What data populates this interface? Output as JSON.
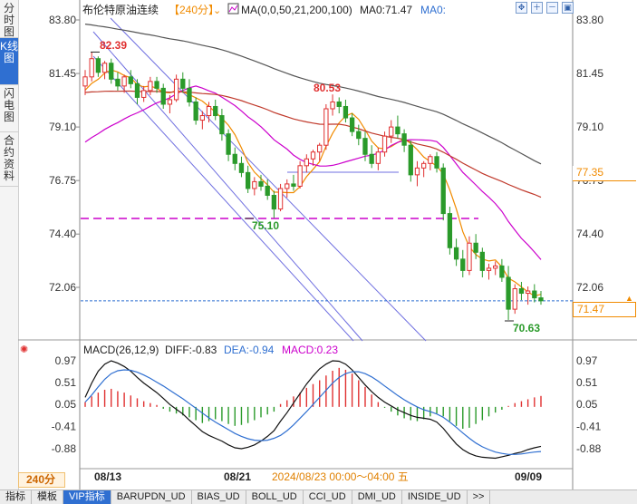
{
  "sidebar": {
    "tabs": [
      {
        "label": "分时图",
        "active": false
      },
      {
        "label": "K线图",
        "active": true
      },
      {
        "label": "闪电图",
        "active": false
      },
      {
        "label": "合约资料",
        "active": false
      }
    ]
  },
  "header": {
    "instrument": "布伦特原油连续",
    "period_tag": "【240分】",
    "ma_formula": "MA(0,0,50,21,200,100)",
    "ma_value_label": "MA0:71.47",
    "ma0_label": "MA0:"
  },
  "price_axis": {
    "ticks": [
      "83.80",
      "81.45",
      "79.10",
      "76.75",
      "74.40",
      "72.06"
    ],
    "right_ticks": [
      "83.80",
      "81.45",
      "79.10",
      "76.75",
      "74.40",
      "72.06"
    ],
    "current_price": "71.47",
    "ma_price": "77.35"
  },
  "annotations": {
    "high_left": "82.39",
    "low_mid": "75.10",
    "high_mid": "80.53",
    "low_right": "70.63"
  },
  "macd": {
    "title": "MACD(26,12,9)",
    "diff": "DIFF:-0.83",
    "dea": "DEA:-0.94",
    "macd": "MACD:0.23",
    "ticks": [
      "0.97",
      "0.51",
      "0.05",
      "-0.41",
      "-0.88"
    ]
  },
  "time_axis": {
    "period": "240分",
    "labels": [
      "08/13",
      "08/21",
      "09/09"
    ],
    "cursor_info": "2024/08/23 00:00～04:00 五"
  },
  "bottom_tabs": [
    {
      "label": "指标",
      "active": false
    },
    {
      "label": "模板",
      "active": false
    },
    {
      "label": "VIP指标",
      "active": true
    },
    {
      "label": "BARUPDN_UD",
      "active": false
    },
    {
      "label": "BIAS_UD",
      "active": false
    },
    {
      "label": "BOLL_UD",
      "active": false
    },
    {
      "label": "CCI_UD",
      "active": false
    },
    {
      "label": "DMI_UD",
      "active": false
    },
    {
      "label": "INSIDE_UD",
      "active": false
    },
    {
      "label": ">>",
      "active": false
    }
  ],
  "colors": {
    "up": "#e03030",
    "down": "#2a9a2a",
    "accent": "#f18b00",
    "blue": "#2f6fd1",
    "magenta": "#cc00cc"
  },
  "chart_data": {
    "type": "candlestick",
    "ylim": [
      70.0,
      84.5
    ],
    "macd_ylim": [
      -1.2,
      1.2
    ],
    "candles": [
      [
        80.9,
        81.6,
        80.5,
        81.3
      ],
      [
        81.3,
        82.39,
        81.1,
        82.1
      ],
      [
        82.1,
        82.2,
        81.3,
        81.5
      ],
      [
        81.5,
        82.0,
        81.2,
        81.9
      ],
      [
        81.9,
        82.1,
        81.0,
        81.2
      ],
      [
        81.2,
        81.5,
        80.7,
        80.9
      ],
      [
        80.9,
        81.4,
        80.6,
        81.3
      ],
      [
        81.3,
        81.6,
        80.8,
        81.0
      ],
      [
        81.0,
        81.2,
        80.1,
        80.4
      ],
      [
        80.4,
        80.9,
        80.2,
        80.7
      ],
      [
        80.7,
        81.3,
        80.5,
        81.1
      ],
      [
        81.1,
        81.3,
        80.6,
        80.8
      ],
      [
        80.8,
        81.0,
        79.9,
        80.1
      ],
      [
        80.1,
        80.5,
        79.7,
        80.3
      ],
      [
        80.3,
        81.4,
        80.2,
        81.2
      ],
      [
        81.2,
        81.5,
        80.6,
        80.8
      ],
      [
        80.8,
        81.2,
        80.0,
        80.2
      ],
      [
        80.2,
        80.4,
        79.2,
        79.4
      ],
      [
        79.4,
        79.8,
        79.0,
        79.6
      ],
      [
        79.6,
        80.2,
        79.3,
        80.0
      ],
      [
        80.0,
        80.3,
        79.4,
        79.6
      ],
      [
        79.6,
        79.9,
        78.5,
        78.8
      ],
      [
        78.8,
        79.0,
        77.6,
        77.9
      ],
      [
        77.9,
        78.2,
        77.2,
        77.5
      ],
      [
        77.5,
        77.8,
        76.9,
        77.1
      ],
      [
        77.1,
        77.4,
        76.2,
        76.4
      ],
      [
        76.4,
        76.9,
        76.1,
        76.7
      ],
      [
        76.7,
        77.0,
        76.3,
        76.5
      ],
      [
        76.5,
        76.8,
        75.9,
        76.1
      ],
      [
        76.1,
        76.3,
        75.1,
        75.5
      ],
      [
        75.5,
        76.6,
        75.4,
        76.4
      ],
      [
        76.4,
        76.8,
        76.0,
        76.6
      ],
      [
        76.6,
        77.0,
        76.3,
        76.5
      ],
      [
        76.5,
        77.6,
        76.4,
        77.4
      ],
      [
        77.4,
        77.9,
        77.1,
        77.7
      ],
      [
        77.7,
        78.1,
        77.4,
        78.0
      ],
      [
        78.0,
        78.4,
        77.6,
        78.3
      ],
      [
        78.3,
        80.1,
        78.1,
        79.9
      ],
      [
        79.9,
        80.53,
        79.6,
        80.2
      ],
      [
        80.2,
        80.4,
        79.7,
        80.0
      ],
      [
        80.0,
        80.3,
        79.3,
        79.5
      ],
      [
        79.5,
        79.7,
        78.7,
        78.9
      ],
      [
        78.9,
        79.2,
        78.3,
        78.6
      ],
      [
        78.6,
        78.9,
        77.6,
        77.9
      ],
      [
        77.9,
        78.3,
        77.3,
        77.5
      ],
      [
        77.5,
        78.2,
        77.2,
        78.0
      ],
      [
        78.0,
        78.9,
        77.8,
        78.7
      ],
      [
        78.7,
        79.4,
        78.4,
        79.1
      ],
      [
        79.1,
        79.6,
        78.6,
        78.8
      ],
      [
        78.8,
        79.0,
        78.0,
        78.3
      ],
      [
        78.3,
        78.5,
        76.7,
        77.0
      ],
      [
        77.0,
        77.6,
        76.5,
        77.3
      ],
      [
        77.3,
        77.6,
        76.9,
        77.5
      ],
      [
        77.5,
        77.9,
        77.2,
        77.8
      ],
      [
        77.8,
        78.0,
        77.1,
        77.3
      ],
      [
        77.3,
        77.5,
        75.0,
        75.3
      ],
      [
        75.3,
        75.6,
        73.5,
        73.8
      ],
      [
        73.8,
        74.2,
        73.0,
        73.3
      ],
      [
        73.3,
        73.7,
        72.5,
        72.8
      ],
      [
        72.8,
        74.3,
        72.6,
        74.0
      ],
      [
        74.0,
        74.4,
        73.3,
        73.6
      ],
      [
        73.6,
        73.8,
        72.5,
        72.8
      ],
      [
        72.8,
        73.1,
        72.4,
        72.9
      ],
      [
        72.9,
        73.2,
        72.6,
        73.0
      ],
      [
        73.0,
        73.3,
        72.3,
        72.5
      ],
      [
        72.5,
        73.0,
        70.63,
        71.1
      ],
      [
        71.1,
        72.2,
        70.9,
        72.0
      ],
      [
        72.0,
        72.3,
        71.5,
        71.8
      ],
      [
        71.8,
        72.1,
        71.3,
        71.9
      ],
      [
        71.9,
        72.2,
        71.4,
        71.6
      ],
      [
        71.6,
        71.9,
        71.3,
        71.47
      ]
    ],
    "macd_hist": [
      0.1,
      0.22,
      0.3,
      0.36,
      0.38,
      0.33,
      0.3,
      0.24,
      0.18,
      0.12,
      0.08,
      0.04,
      -0.04,
      -0.1,
      -0.14,
      -0.18,
      -0.22,
      -0.28,
      -0.34,
      -0.3,
      -0.26,
      -0.3,
      -0.36,
      -0.4,
      -0.38,
      -0.34,
      -0.28,
      -0.22,
      -0.16,
      -0.1,
      0.06,
      0.14,
      0.22,
      0.3,
      0.4,
      0.48,
      0.56,
      0.66,
      0.76,
      0.82,
      0.78,
      0.7,
      0.56,
      0.42,
      0.26,
      0.1,
      -0.02,
      -0.1,
      -0.18,
      -0.24,
      -0.28,
      -0.3,
      -0.26,
      -0.2,
      -0.14,
      -0.2,
      -0.3,
      -0.4,
      -0.46,
      -0.44,
      -0.36,
      -0.28,
      -0.2,
      -0.12,
      -0.06,
      0.02,
      0.08,
      0.12,
      0.16,
      0.2,
      0.23
    ],
    "diff": [
      0.2,
      0.5,
      0.75,
      0.9,
      0.97,
      0.92,
      0.85,
      0.75,
      0.62,
      0.5,
      0.4,
      0.3,
      0.18,
      0.05,
      -0.05,
      -0.15,
      -0.28,
      -0.4,
      -0.52,
      -0.6,
      -0.66,
      -0.72,
      -0.8,
      -0.86,
      -0.88,
      -0.85,
      -0.8,
      -0.72,
      -0.62,
      -0.5,
      -0.3,
      -0.12,
      0.08,
      0.28,
      0.48,
      0.65,
      0.8,
      0.9,
      0.97,
      0.96,
      0.9,
      0.78,
      0.62,
      0.46,
      0.32,
      0.2,
      0.1,
      0.02,
      -0.06,
      -0.12,
      -0.18,
      -0.22,
      -0.24,
      -0.26,
      -0.32,
      -0.45,
      -0.62,
      -0.78,
      -0.9,
      -0.98,
      -1.03,
      -1.06,
      -1.07,
      -1.08,
      -1.05,
      -1.02,
      -0.98,
      -0.95,
      -0.9,
      -0.86,
      -0.83
    ],
    "dea": [
      0.1,
      0.25,
      0.42,
      0.58,
      0.7,
      0.76,
      0.78,
      0.77,
      0.73,
      0.67,
      0.6,
      0.52,
      0.44,
      0.35,
      0.26,
      0.17,
      0.07,
      -0.03,
      -0.13,
      -0.23,
      -0.32,
      -0.4,
      -0.48,
      -0.56,
      -0.62,
      -0.67,
      -0.7,
      -0.71,
      -0.7,
      -0.66,
      -0.6,
      -0.5,
      -0.38,
      -0.24,
      -0.1,
      0.05,
      0.2,
      0.35,
      0.5,
      0.62,
      0.7,
      0.74,
      0.74,
      0.7,
      0.63,
      0.54,
      0.44,
      0.34,
      0.24,
      0.15,
      0.07,
      0.0,
      -0.06,
      -0.1,
      -0.15,
      -0.22,
      -0.32,
      -0.43,
      -0.55,
      -0.66,
      -0.76,
      -0.84,
      -0.9,
      -0.95,
      -0.98,
      -1.0,
      -1.0,
      -0.99,
      -0.97,
      -0.95,
      -0.94
    ]
  }
}
